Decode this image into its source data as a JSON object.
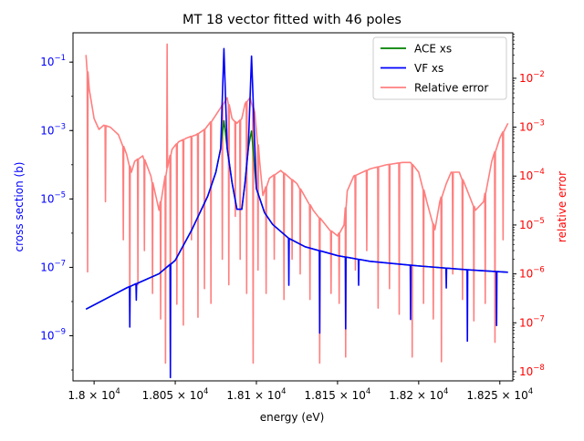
{
  "chart_data": {
    "type": "line",
    "title": "MT 18 vector fitted with 46 poles",
    "xlabel": "energy (eV)",
    "ylabel_left": "cross section (b)",
    "ylabel_right": "relative error",
    "xlim": [
      17987,
      18258
    ],
    "ylim_left": [
      4.8e-11,
      0.72
    ],
    "ylim_right": [
      6.5e-09,
      0.085
    ],
    "yscale_left": "log",
    "yscale_right": "log",
    "grid": false,
    "legend_position": "top-right",
    "colors": {
      "left_axis": "#0000ff",
      "right_axis": "#ff0000",
      "ace": "#008000",
      "vf": "#0000ff",
      "err": "#ff7f7f"
    },
    "x_ticks": [
      {
        "value": 18000,
        "label": "1.8 × 10",
        "exp": "4"
      },
      {
        "value": 18050,
        "label": "1.805 × 10",
        "exp": "4"
      },
      {
        "value": 18100,
        "label": "1.81 × 10",
        "exp": "4"
      },
      {
        "value": 18150,
        "label": "1.815 × 10",
        "exp": "4"
      },
      {
        "value": 18200,
        "label": "1.82 × 10",
        "exp": "4"
      },
      {
        "value": 18250,
        "label": "1.825 × 10",
        "exp": "4"
      }
    ],
    "y_left_ticks": [
      {
        "value": 1e-09,
        "label": "10",
        "exp": "−9"
      },
      {
        "value": 1e-07,
        "label": "10",
        "exp": "−7"
      },
      {
        "value": 1e-05,
        "label": "10",
        "exp": "−5"
      },
      {
        "value": 0.001,
        "label": "10",
        "exp": "−3"
      },
      {
        "value": 0.1,
        "label": "10",
        "exp": "−1"
      }
    ],
    "y_right_ticks": [
      {
        "value": 1e-08,
        "label": "10",
        "exp": "−8"
      },
      {
        "value": 1e-07,
        "label": "10",
        "exp": "−7"
      },
      {
        "value": 1e-06,
        "label": "10",
        "exp": "−6"
      },
      {
        "value": 1e-05,
        "label": "10",
        "exp": "−5"
      },
      {
        "value": 0.0001,
        "label": "10",
        "exp": "−4"
      },
      {
        "value": 0.001,
        "label": "10",
        "exp": "−3"
      },
      {
        "value": 0.01,
        "label": "10",
        "exp": "−2"
      }
    ],
    "series": [
      {
        "name": "ACE xs",
        "axis": "left",
        "x": [
          17995,
          18020,
          18040,
          18050,
          18060,
          18070,
          18075,
          18078,
          18080,
          18082,
          18085,
          18088,
          18091,
          18093,
          18095,
          18097,
          18100,
          18105,
          18110,
          18120,
          18130,
          18150,
          18170,
          18200,
          18230,
          18255
        ],
        "y": [
          6e-09,
          2.5e-08,
          6.5e-08,
          1.6e-07,
          1.2e-06,
          1.2e-05,
          6e-05,
          0.0003,
          0.002,
          0.0003,
          3e-05,
          5e-06,
          5e-06,
          3e-05,
          0.0003,
          0.001,
          2e-05,
          4e-06,
          1.8e-06,
          7e-07,
          4e-07,
          2.2e-07,
          1.5e-07,
          1.1e-07,
          8.5e-08,
          7.2e-08
        ]
      },
      {
        "name": "VF xs",
        "axis": "left",
        "x": [
          17995,
          18020,
          18040,
          18050,
          18060,
          18070,
          18075,
          18078,
          18080,
          18082,
          18085,
          18088,
          18091,
          18093,
          18095,
          18097,
          18100,
          18105,
          18110,
          18120,
          18130,
          18150,
          18170,
          18200,
          18230,
          18255
        ],
        "y": [
          6e-09,
          2.5e-08,
          6.5e-08,
          1.6e-07,
          1.2e-06,
          1.2e-05,
          6e-05,
          0.0003,
          0.25,
          0.0003,
          3e-05,
          5e-06,
          5e-06,
          3e-05,
          0.0003,
          0.15,
          2e-05,
          4e-06,
          1.8e-06,
          7e-07,
          4e-07,
          2.2e-07,
          1.5e-07,
          1.1e-07,
          8.5e-08,
          7.2e-08
        ],
        "dips": [
          {
            "x": 18022,
            "y": 1.8e-09
          },
          {
            "x": 18026,
            "y": 1.1e-08
          },
          {
            "x": 18047,
            "y": 6e-11
          },
          {
            "x": 18120,
            "y": 3e-08
          },
          {
            "x": 18139,
            "y": 1.2e-09
          },
          {
            "x": 18155,
            "y": 1.6e-09
          },
          {
            "x": 18163,
            "y": 3e-08
          },
          {
            "x": 18195,
            "y": 3e-09
          },
          {
            "x": 18217,
            "y": 2.5e-08
          },
          {
            "x": 18230,
            "y": 7e-10
          },
          {
            "x": 18248,
            "y": 2e-09
          }
        ]
      },
      {
        "name": "Relative error",
        "axis": "right",
        "envelope": {
          "x": [
            17995,
            17997,
            18000,
            18003,
            18006,
            18010,
            18015,
            18020,
            18023,
            18025,
            18030,
            18035,
            18040,
            18045,
            18048,
            18052,
            18057,
            18063,
            18068,
            18073,
            18078,
            18082,
            18085,
            18088,
            18091,
            18093,
            18096,
            18099,
            18102,
            18104,
            18108,
            18115,
            18125,
            18135,
            18145,
            18150,
            18154,
            18156,
            18160,
            18170,
            18180,
            18190,
            18195,
            18200,
            18205,
            18210,
            18213,
            18217,
            18220,
            18225,
            18230,
            18235,
            18240,
            18245,
            18250,
            18255
          ],
          "y": [
            0.03,
            0.006,
            0.0015,
            0.0009,
            0.0011,
            0.001,
            0.0007,
            0.00028,
            0.00012,
            0.0002,
            0.00026,
            0.0001,
            2e-05,
            0.00015,
            0.00035,
            0.0005,
            0.0006,
            0.0007,
            0.0009,
            0.0014,
            0.0025,
            0.004,
            0.0015,
            0.0012,
            0.0015,
            0.003,
            0.004,
            0.002,
            0.0002,
            4e-05,
            9e-05,
            0.00013,
            7e-05,
            2e-05,
            8e-06,
            6e-06,
            1e-05,
            5e-05,
            0.0001,
            0.00014,
            0.00017,
            0.00019,
            0.00019,
            0.00012,
            3e-05,
            8e-06,
            3e-05,
            7e-05,
            0.00012,
            0.00012,
            5e-05,
            2e-05,
            3e-05,
            0.0002,
            0.0006,
            0.0012
          ]
        },
        "spikes": [
          {
            "x": 17996,
            "y": 1.1e-06
          },
          {
            "x": 18007,
            "y": 3e-05
          },
          {
            "x": 18018,
            "y": 5e-06
          },
          {
            "x": 18022,
            "y": 1.5e-07
          },
          {
            "x": 18027,
            "y": 6e-07
          },
          {
            "x": 18031,
            "y": 3e-06
          },
          {
            "x": 18036,
            "y": 4e-07
          },
          {
            "x": 18041,
            "y": 1.2e-07
          },
          {
            "x": 18044,
            "y": 1.5e-08
          },
          {
            "x": 18045,
            "y": 0.05
          },
          {
            "x": 18047,
            "y": 2.5e-08
          },
          {
            "x": 18051,
            "y": 2.4e-07
          },
          {
            "x": 18055,
            "y": 9e-08
          },
          {
            "x": 18060,
            "y": 5e-06
          },
          {
            "x": 18064,
            "y": 1.3e-07
          },
          {
            "x": 18068,
            "y": 5e-07
          },
          {
            "x": 18072,
            "y": 2.5e-07
          },
          {
            "x": 18079,
            "y": 2e-06
          },
          {
            "x": 18083,
            "y": 6e-07
          },
          {
            "x": 18087,
            "y": 1.5e-05
          },
          {
            "x": 18090,
            "y": 2e-06
          },
          {
            "x": 18094,
            "y": 4e-07
          },
          {
            "x": 18098,
            "y": 1.5e-08
          },
          {
            "x": 18101,
            "y": 1.2e-06
          },
          {
            "x": 18106,
            "y": 4e-07
          },
          {
            "x": 18111,
            "y": 2e-06
          },
          {
            "x": 18117,
            "y": 3e-07
          },
          {
            "x": 18122,
            "y": 2e-06
          },
          {
            "x": 18127,
            "y": 1e-06
          },
          {
            "x": 18133,
            "y": 3e-07
          },
          {
            "x": 18139,
            "y": 1.5e-08
          },
          {
            "x": 18146,
            "y": 4e-07
          },
          {
            "x": 18151,
            "y": 2.5e-07
          },
          {
            "x": 18155,
            "y": 2e-08
          },
          {
            "x": 18161,
            "y": 1.2e-06
          },
          {
            "x": 18168,
            "y": 3e-06
          },
          {
            "x": 18175,
            "y": 2e-07
          },
          {
            "x": 18182,
            "y": 5e-07
          },
          {
            "x": 18188,
            "y": 1.5e-07
          },
          {
            "x": 18196,
            "y": 2e-08
          },
          {
            "x": 18203,
            "y": 2.5e-07
          },
          {
            "x": 18209,
            "y": 1.2e-07
          },
          {
            "x": 18214,
            "y": 1.6e-08
          },
          {
            "x": 18221,
            "y": 1e-06
          },
          {
            "x": 18227,
            "y": 3e-07
          },
          {
            "x": 18234,
            "y": 1.1e-07
          },
          {
            "x": 18241,
            "y": 2.5e-07
          },
          {
            "x": 18247,
            "y": 4e-08
          },
          {
            "x": 18252,
            "y": 5e-06
          }
        ]
      }
    ]
  }
}
